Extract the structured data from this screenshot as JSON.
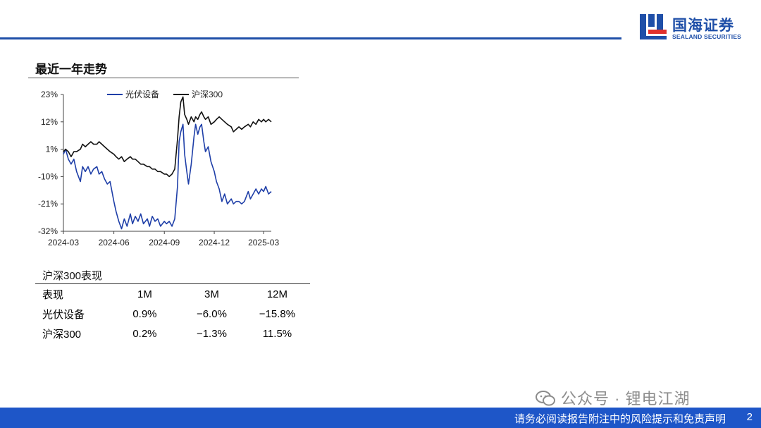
{
  "brand": {
    "name_cn": "国海证券",
    "name_en": "SEALAND SECURITIES",
    "color": "#1f4fa8"
  },
  "section": {
    "title": "最近一年走势"
  },
  "chart_data": {
    "type": "line",
    "title": "",
    "xlabel": "",
    "ylabel": "",
    "legend_position": "top",
    "grid": false,
    "y_ticks": [
      "23%",
      "12%",
      "1%",
      "-10%",
      "-21%",
      "-32%"
    ],
    "ylim": [
      -32,
      23
    ],
    "x_ticks": [
      "2024-03",
      "2024-06",
      "2024-09",
      "2024-12",
      "2025-03"
    ],
    "x_range": [
      "2024-03-01",
      "2025-03-15"
    ],
    "series": [
      {
        "name": "光伏设备",
        "color": "#1f3fa8",
        "points": [
          [
            "2024-03-01",
            -1
          ],
          [
            "2024-03-05",
            1
          ],
          [
            "2024-03-10",
            -3
          ],
          [
            "2024-03-15",
            -5
          ],
          [
            "2024-03-20",
            -3
          ],
          [
            "2024-03-25",
            -8
          ],
          [
            "2024-04-01",
            -12
          ],
          [
            "2024-04-05",
            -6
          ],
          [
            "2024-04-10",
            -8
          ],
          [
            "2024-04-15",
            -6
          ],
          [
            "2024-04-20",
            -9
          ],
          [
            "2024-04-25",
            -7
          ],
          [
            "2024-05-01",
            -6
          ],
          [
            "2024-05-05",
            -9
          ],
          [
            "2024-05-10",
            -8
          ],
          [
            "2024-05-15",
            -11
          ],
          [
            "2024-05-20",
            -13
          ],
          [
            "2024-05-25",
            -12
          ],
          [
            "2024-06-01",
            -20
          ],
          [
            "2024-06-05",
            -24
          ],
          [
            "2024-06-10",
            -28
          ],
          [
            "2024-06-15",
            -31
          ],
          [
            "2024-06-20",
            -27
          ],
          [
            "2024-06-25",
            -30
          ],
          [
            "2024-07-01",
            -25
          ],
          [
            "2024-07-05",
            -29
          ],
          [
            "2024-07-10",
            -26
          ],
          [
            "2024-07-15",
            -28
          ],
          [
            "2024-07-20",
            -25
          ],
          [
            "2024-07-25",
            -29
          ],
          [
            "2024-08-01",
            -27
          ],
          [
            "2024-08-05",
            -30
          ],
          [
            "2024-08-10",
            -26
          ],
          [
            "2024-08-15",
            -28
          ],
          [
            "2024-08-20",
            -27
          ],
          [
            "2024-08-25",
            -30
          ],
          [
            "2024-09-01",
            -28
          ],
          [
            "2024-09-05",
            -29
          ],
          [
            "2024-09-10",
            -28
          ],
          [
            "2024-09-15",
            -30
          ],
          [
            "2024-09-20",
            -27
          ],
          [
            "2024-09-25",
            -14
          ],
          [
            "2024-09-28",
            4
          ],
          [
            "2024-10-01",
            8
          ],
          [
            "2024-10-05",
            11
          ],
          [
            "2024-10-08",
            -1
          ],
          [
            "2024-10-12",
            -8
          ],
          [
            "2024-10-15",
            -13
          ],
          [
            "2024-10-20",
            -5
          ],
          [
            "2024-10-25",
            6
          ],
          [
            "2024-10-28",
            11
          ],
          [
            "2024-11-01",
            7
          ],
          [
            "2024-11-05",
            10
          ],
          [
            "2024-11-08",
            11
          ],
          [
            "2024-11-12",
            4
          ],
          [
            "2024-11-15",
            0
          ],
          [
            "2024-11-20",
            2
          ],
          [
            "2024-11-25",
            -4
          ],
          [
            "2024-12-01",
            -8
          ],
          [
            "2024-12-05",
            -12
          ],
          [
            "2024-12-10",
            -15
          ],
          [
            "2024-12-15",
            -20
          ],
          [
            "2024-12-20",
            -17
          ],
          [
            "2024-12-25",
            -21
          ],
          [
            "2025-01-01",
            -19
          ],
          [
            "2025-01-05",
            -21
          ],
          [
            "2025-01-10",
            -20
          ],
          [
            "2025-01-15",
            -20
          ],
          [
            "2025-01-20",
            -21
          ],
          [
            "2025-01-25",
            -20
          ],
          [
            "2025-02-01",
            -16
          ],
          [
            "2025-02-05",
            -19
          ],
          [
            "2025-02-10",
            -17
          ],
          [
            "2025-02-15",
            -15
          ],
          [
            "2025-02-20",
            -17
          ],
          [
            "2025-02-25",
            -15
          ],
          [
            "2025-03-01",
            -16
          ],
          [
            "2025-03-05",
            -14
          ],
          [
            "2025-03-10",
            -17
          ],
          [
            "2025-03-15",
            -16
          ]
        ]
      },
      {
        "name": "沪深300",
        "color": "#111111",
        "points": [
          [
            "2024-03-01",
            0
          ],
          [
            "2024-03-05",
            1
          ],
          [
            "2024-03-10",
            0
          ],
          [
            "2024-03-15",
            -2
          ],
          [
            "2024-03-20",
            0
          ],
          [
            "2024-03-25",
            0
          ],
          [
            "2024-04-01",
            1
          ],
          [
            "2024-04-05",
            3
          ],
          [
            "2024-04-10",
            2
          ],
          [
            "2024-04-15",
            3
          ],
          [
            "2024-04-20",
            4
          ],
          [
            "2024-04-25",
            3
          ],
          [
            "2024-05-01",
            3
          ],
          [
            "2024-05-05",
            4
          ],
          [
            "2024-05-10",
            3
          ],
          [
            "2024-05-15",
            2
          ],
          [
            "2024-05-20",
            1
          ],
          [
            "2024-05-25",
            0
          ],
          [
            "2024-06-01",
            -1
          ],
          [
            "2024-06-05",
            -2
          ],
          [
            "2024-06-10",
            -3
          ],
          [
            "2024-06-15",
            -2
          ],
          [
            "2024-06-20",
            -4
          ],
          [
            "2024-06-25",
            -3
          ],
          [
            "2024-07-01",
            -2
          ],
          [
            "2024-07-05",
            -3
          ],
          [
            "2024-07-10",
            -3
          ],
          [
            "2024-07-15",
            -4
          ],
          [
            "2024-07-20",
            -5
          ],
          [
            "2024-07-25",
            -5
          ],
          [
            "2024-08-01",
            -6
          ],
          [
            "2024-08-05",
            -6
          ],
          [
            "2024-08-10",
            -7
          ],
          [
            "2024-08-15",
            -7
          ],
          [
            "2024-08-20",
            -8
          ],
          [
            "2024-08-25",
            -8
          ],
          [
            "2024-09-01",
            -9
          ],
          [
            "2024-09-05",
            -9
          ],
          [
            "2024-09-10",
            -10
          ],
          [
            "2024-09-15",
            -9
          ],
          [
            "2024-09-20",
            -7
          ],
          [
            "2024-09-25",
            5
          ],
          [
            "2024-09-28",
            14
          ],
          [
            "2024-10-01",
            20
          ],
          [
            "2024-10-05",
            22
          ],
          [
            "2024-10-08",
            15
          ],
          [
            "2024-10-12",
            13
          ],
          [
            "2024-10-15",
            11
          ],
          [
            "2024-10-20",
            14
          ],
          [
            "2024-10-25",
            12
          ],
          [
            "2024-10-28",
            14
          ],
          [
            "2024-11-01",
            13
          ],
          [
            "2024-11-05",
            15
          ],
          [
            "2024-11-08",
            16
          ],
          [
            "2024-11-12",
            14
          ],
          [
            "2024-11-15",
            13
          ],
          [
            "2024-11-20",
            14
          ],
          [
            "2024-11-25",
            11
          ],
          [
            "2024-12-01",
            12
          ],
          [
            "2024-12-05",
            13
          ],
          [
            "2024-12-10",
            14
          ],
          [
            "2024-12-15",
            13
          ],
          [
            "2024-12-20",
            12
          ],
          [
            "2024-12-25",
            11
          ],
          [
            "2025-01-01",
            10
          ],
          [
            "2025-01-05",
            8
          ],
          [
            "2025-01-10",
            9
          ],
          [
            "2025-01-15",
            10
          ],
          [
            "2025-01-20",
            9
          ],
          [
            "2025-01-25",
            10
          ],
          [
            "2025-02-01",
            11
          ],
          [
            "2025-02-05",
            10
          ],
          [
            "2025-02-10",
            12
          ],
          [
            "2025-02-15",
            11
          ],
          [
            "2025-02-20",
            13
          ],
          [
            "2025-02-25",
            12
          ],
          [
            "2025-03-01",
            13
          ],
          [
            "2025-03-05",
            12
          ],
          [
            "2025-03-10",
            13
          ],
          [
            "2025-03-15",
            12
          ]
        ]
      }
    ]
  },
  "performance": {
    "title": "沪深300表现",
    "header": [
      "表现",
      "1M",
      "3M",
      "12M"
    ],
    "rows": [
      [
        "光伏设备",
        "0.9%",
        "−6.0%",
        "−15.8%"
      ],
      [
        "沪深300",
        "0.2%",
        "−1.3%",
        "11.5%"
      ]
    ]
  },
  "watermark": {
    "text": "公众号 · 锂电江湖"
  },
  "footer": {
    "disclaimer": "请务必阅读报告附注中的风险提示和免责声明",
    "page_number": "2",
    "bar_color": "#1e56c8"
  }
}
